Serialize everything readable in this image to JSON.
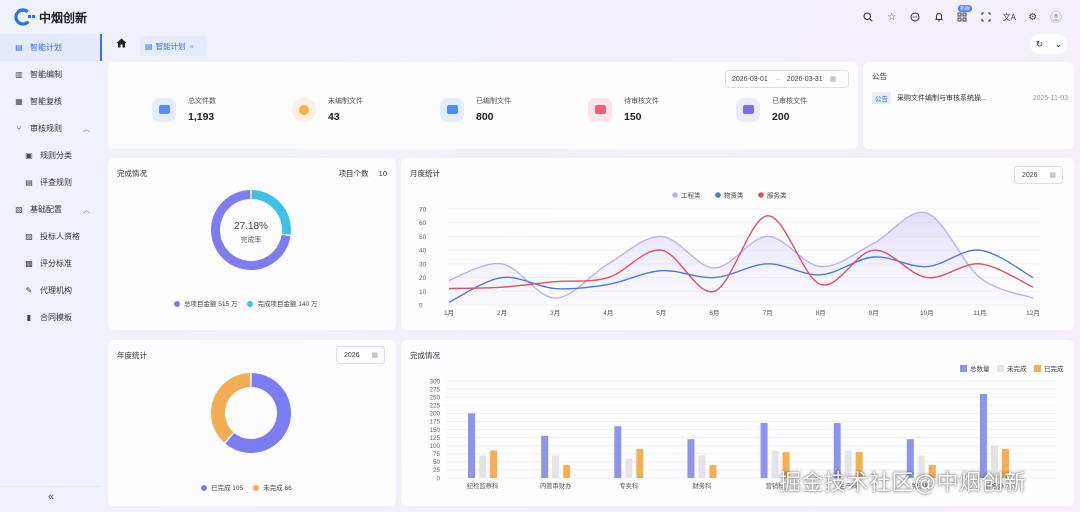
{
  "app": {
    "name": "中烟创新"
  },
  "topbar": {
    "badge": "新版"
  },
  "sidebar": {
    "items": [
      {
        "label": "智能计划",
        "icon": "doc-icon",
        "active": true
      },
      {
        "label": "智能编制",
        "icon": "edit-doc-icon"
      },
      {
        "label": "智能复核",
        "icon": "review-icon"
      },
      {
        "label": "审核规则",
        "icon": "branch-icon",
        "expandable": true
      },
      {
        "label": "规则分类",
        "icon": "table-icon",
        "child": true
      },
      {
        "label": "评查规则",
        "icon": "list-icon",
        "child": true
      },
      {
        "label": "基础配置",
        "icon": "config-icon",
        "expandable": true
      },
      {
        "label": "投标人资格",
        "icon": "person-doc-icon",
        "child": true
      },
      {
        "label": "评分标准",
        "icon": "score-icon",
        "child": true
      },
      {
        "label": "代理机构",
        "icon": "agency-icon",
        "child": true
      },
      {
        "label": "合同模板",
        "icon": "contract-icon",
        "child": true
      }
    ],
    "collapse": "«"
  },
  "tabs": {
    "active": "智能计划",
    "close": "×"
  },
  "date_range": {
    "start": "2026-03-01",
    "sep": "→",
    "end": "2026-03-31"
  },
  "stats": [
    {
      "label": "总文件数",
      "value": "1,193",
      "color": "#5b8ff9"
    },
    {
      "label": "未编制文件",
      "value": "43",
      "color": "#f5b04d"
    },
    {
      "label": "已编制文件",
      "value": "800",
      "color": "#4f8ef7"
    },
    {
      "label": "待审核文件",
      "value": "150",
      "color": "#f0607a"
    },
    {
      "label": "已审核文件",
      "value": "200",
      "color": "#7b6cf6"
    }
  ],
  "notice": {
    "title": "公告",
    "tag": "公告",
    "text": "采购文件编制与审核系统操...",
    "date": "2025-11-03"
  },
  "completion": {
    "title": "完成情况",
    "count_label": "项目个数",
    "count_value": "10",
    "center_pct": "27.18%",
    "center_label": "完成率",
    "legend": [
      {
        "label": "总项目金额 515 万",
        "color": "#7f7cf0"
      },
      {
        "label": "完成项目金额 140 万",
        "color": "#3ec1e6"
      }
    ]
  },
  "monthly": {
    "title": "月度统计",
    "year": "2026"
  },
  "yearly": {
    "title": "年度统计",
    "year": "2026",
    "legend": [
      {
        "label": "已完成 105",
        "color": "#7b7ef3"
      },
      {
        "label": "未完成 66",
        "color": "#f2ad55"
      }
    ]
  },
  "bar_panel": {
    "title": "完成情况"
  },
  "chart_data": [
    {
      "type": "pie",
      "title": "完成情况",
      "center_text": "27.18%",
      "slices": [
        {
          "name": "完成项目金额",
          "value": 140,
          "color": "#3ec1e6"
        },
        {
          "name": "总项目金额",
          "value": 375,
          "color": "#7f7cf0"
        }
      ]
    },
    {
      "type": "line",
      "title": "月度统计",
      "categories": [
        "1月",
        "2月",
        "3月",
        "4月",
        "5月",
        "6月",
        "7月",
        "8月",
        "9月",
        "10月",
        "11月",
        "12月"
      ],
      "ylim": [
        0,
        70
      ],
      "yticks": [
        0,
        10,
        20,
        30,
        40,
        50,
        60,
        70
      ],
      "series": [
        {
          "name": "工程类",
          "color": "#b9b3ee",
          "area": true,
          "values": [
            18,
            30,
            5,
            30,
            50,
            27,
            50,
            28,
            45,
            67,
            20,
            5
          ]
        },
        {
          "name": "物资类",
          "color": "#4f79d9",
          "values": [
            2,
            20,
            12,
            15,
            25,
            20,
            30,
            22,
            35,
            28,
            40,
            20
          ]
        },
        {
          "name": "服务类",
          "color": "#e0505f",
          "values": [
            12,
            13,
            17,
            20,
            40,
            10,
            65,
            15,
            40,
            20,
            30,
            13
          ]
        }
      ]
    },
    {
      "type": "pie",
      "title": "年度统计",
      "slices": [
        {
          "name": "已完成",
          "value": 105,
          "color": "#7b7ef3"
        },
        {
          "name": "未完成",
          "value": 66,
          "color": "#f2ad55"
        }
      ]
    },
    {
      "type": "bar",
      "title": "完成情况",
      "ylim": [
        0,
        300
      ],
      "yticks": [
        0,
        25,
        50,
        75,
        100,
        125,
        150,
        175,
        200,
        225,
        250,
        275,
        300
      ],
      "categories": [
        "纪检监察科",
        "内管审财办",
        "专卖科",
        "财务科",
        "营销科",
        "生产科",
        "物流科",
        "综合办"
      ],
      "series": [
        {
          "name": "总数量",
          "color": "#8e93ee",
          "values": [
            200,
            130,
            160,
            120,
            170,
            170,
            120,
            260
          ]
        },
        {
          "name": "未完成",
          "color": "#e4e4e8",
          "values": [
            70,
            70,
            60,
            70,
            85,
            85,
            70,
            100
          ]
        },
        {
          "name": "已完成",
          "color": "#f4b04f",
          "values": [
            85,
            40,
            90,
            40,
            80,
            80,
            40,
            90
          ]
        }
      ]
    }
  ],
  "watermark": "掘金技术社区@中烟创新"
}
